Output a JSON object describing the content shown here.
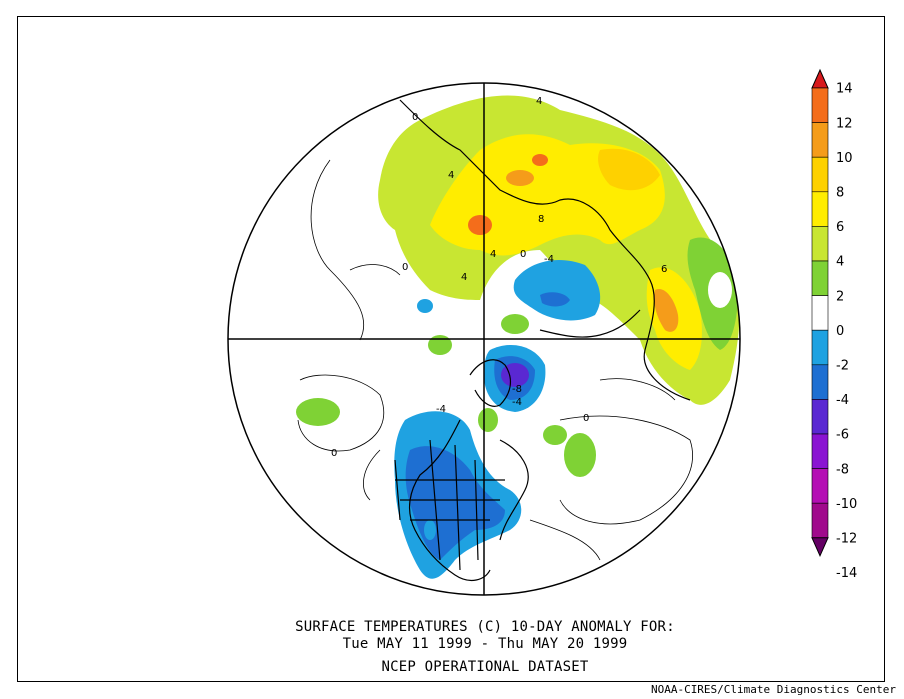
{
  "caption": {
    "line1": "SURFACE TEMPERATURES (C)   10-DAY ANOMALY FOR:",
    "line2": "Tue MAY 11 1999 - Thu MAY 20 1999",
    "line3": "NCEP OPERATIONAL DATASET"
  },
  "credit": "NOAA-CIRES/Climate Diagnostics Center",
  "colorbar": {
    "levels": [
      "14",
      "12",
      "10",
      "8",
      "6",
      "4",
      "2",
      "0",
      "-2",
      "-4",
      "-6",
      "-8",
      "-10",
      "-12",
      "-14"
    ],
    "colors": [
      "#d7191c",
      "#f46d1b",
      "#f59c1a",
      "#fed100",
      "#ffed00",
      "#c8e632",
      "#7fd235",
      "#ffffff",
      "#1fa2e1",
      "#1e6fd2",
      "#5a28d2",
      "#8a14d2",
      "#b40fb4",
      "#a00a8c",
      "#640064"
    ]
  },
  "contour_labels": [
    {
      "text": "0"
    },
    {
      "text": "4"
    },
    {
      "text": "4"
    },
    {
      "text": "8"
    },
    {
      "text": "4"
    },
    {
      "text": "6"
    },
    {
      "text": "-4"
    },
    {
      "text": "0"
    },
    {
      "text": "-8"
    },
    {
      "text": "-4"
    },
    {
      "text": "-4"
    },
    {
      "text": "0"
    },
    {
      "text": "0"
    },
    {
      "text": "4"
    },
    {
      "text": "0"
    }
  ]
}
